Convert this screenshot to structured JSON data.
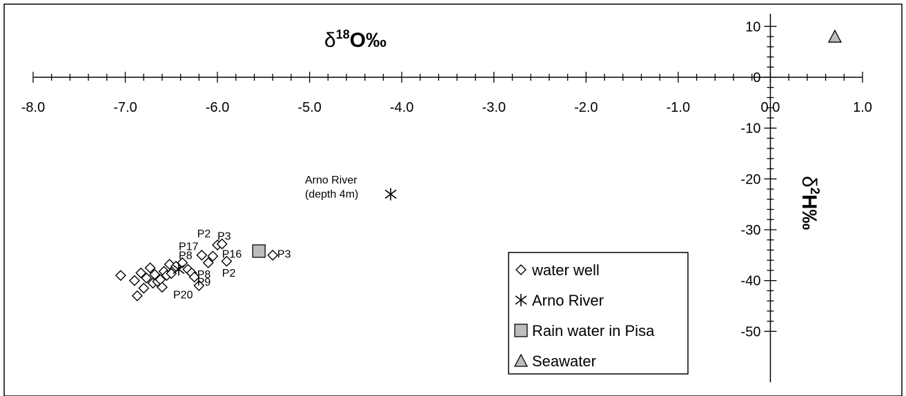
{
  "chart_data": {
    "type": "scatter",
    "xlabel": {
      "base": "δ",
      "sup": "18",
      "rest": "O‰"
    },
    "ylabel": {
      "base": "δ",
      "sup": "2",
      "rest": "H‰"
    },
    "xlim": [
      -8.0,
      1.0
    ],
    "ylim": [
      -50,
      10
    ],
    "x_ticks": [
      "-8.0",
      "-7.0",
      "-6.0",
      "-5.0",
      "-4.0",
      "-3.0",
      "-2.0",
      "-1.0",
      "0.0",
      "1.0"
    ],
    "y_ticks": [
      "10",
      "0",
      "-10",
      "-20",
      "-30",
      "-40",
      "-50"
    ],
    "grid": false,
    "legend_position": "bottom-right",
    "series": [
      {
        "name": "water well",
        "marker": "diamond",
        "points": [
          [
            -7.05,
            -39.0
          ],
          [
            -6.9,
            -40.0
          ],
          [
            -6.87,
            -43.0
          ],
          [
            -6.83,
            -38.5
          ],
          [
            -6.8,
            -41.5
          ],
          [
            -6.77,
            -39.5
          ],
          [
            -6.73,
            -37.5
          ],
          [
            -6.7,
            -40.5
          ],
          [
            -6.68,
            -38.8
          ],
          [
            -6.65,
            -40.2
          ],
          [
            -6.62,
            -39.8
          ],
          [
            -6.6,
            -41.3
          ],
          [
            -6.58,
            -38.2
          ],
          [
            -6.55,
            -39.0
          ],
          [
            -6.52,
            -36.8
          ],
          [
            -6.5,
            -38.6
          ],
          [
            -6.45,
            -37.2
          ],
          [
            -6.38,
            -36.5
          ],
          [
            -6.32,
            -37.8
          ],
          [
            -6.28,
            -38.5
          ],
          [
            -6.25,
            -39.3
          ],
          [
            -6.2,
            -41.0
          ],
          [
            -6.17,
            -35.0
          ],
          [
            -6.1,
            -36.5
          ],
          [
            -6.05,
            -35.2
          ],
          [
            -6.0,
            -33.0
          ],
          [
            -5.95,
            -32.8
          ],
          [
            -5.9,
            -36.2
          ],
          [
            -5.4,
            -35.0
          ]
        ]
      },
      {
        "name": "Arno River",
        "marker": "asterisk",
        "points": [
          [
            -4.12,
            -23.0
          ],
          [
            -6.42,
            -37.8
          ]
        ]
      },
      {
        "name": "Rain water in Pisa",
        "marker": "square",
        "points": [
          [
            -5.55,
            -34.2
          ]
        ]
      },
      {
        "name": "Seawater",
        "marker": "triangle",
        "points": [
          [
            0.7,
            8.0
          ]
        ]
      }
    ],
    "annotations": [
      {
        "text": "P2",
        "x": -6.22,
        "y": -31.5
      },
      {
        "text": "P3",
        "x": -6.0,
        "y": -32.0
      },
      {
        "text": "P17",
        "x": -6.42,
        "y": -34.0
      },
      {
        "text": "P16",
        "x": -5.95,
        "y": -35.5
      },
      {
        "text": "P3",
        "x": -5.35,
        "y": -35.5
      },
      {
        "text": "P8",
        "x": -6.42,
        "y": -35.8
      },
      {
        "text": "P8",
        "x": -6.22,
        "y": -39.5
      },
      {
        "text": "P2",
        "x": -5.95,
        "y": -39.2
      },
      {
        "text": "P9",
        "x": -6.22,
        "y": -41.0
      },
      {
        "text": "P20",
        "x": -6.48,
        "y": -43.5
      },
      {
        "text": "Arno River",
        "x": -5.05,
        "y": -20.9
      },
      {
        "text": "(depth 4m)",
        "x": -5.05,
        "y": -23.7
      }
    ]
  }
}
